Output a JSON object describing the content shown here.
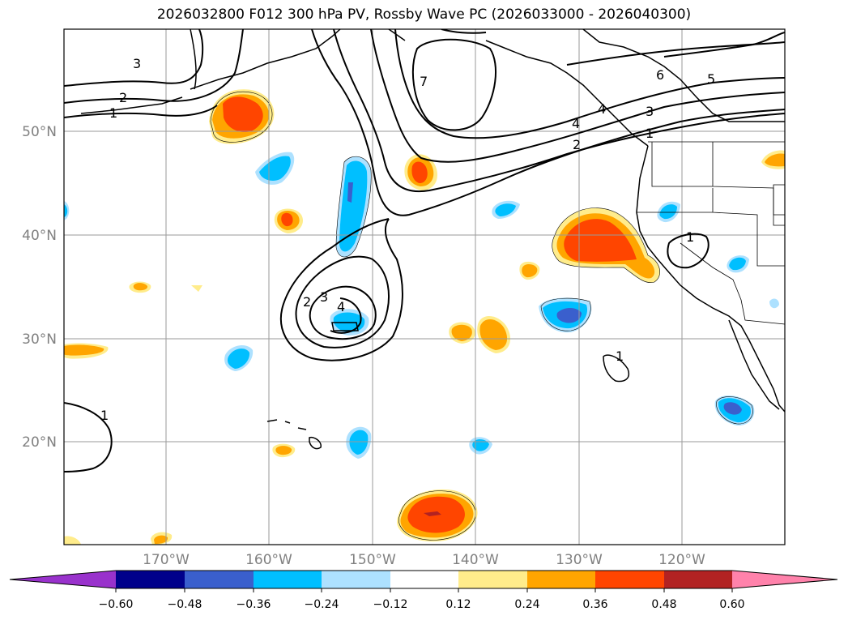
{
  "title": "2026032800 F012 300 hPa PV, Rossby Wave PC (2026033000 - 2026040300)",
  "map": {
    "lat_labels": [
      "50°N",
      "40°N",
      "30°N",
      "20°N"
    ],
    "lon_labels": [
      "170°W",
      "160°W",
      "150°W",
      "140°W",
      "130°W",
      "120°W"
    ],
    "contour_labels": [
      "3",
      "2",
      "1",
      "7",
      "6",
      "5",
      "4",
      "3",
      "2",
      "1",
      "1",
      "4",
      "2",
      "3",
      "4",
      "1",
      "1"
    ]
  },
  "colorbar": {
    "ticks": [
      "−0.60",
      "−0.48",
      "−0.36",
      "−0.24",
      "−0.12",
      "0.12",
      "0.24",
      "0.36",
      "0.48",
      "0.60"
    ],
    "colors": [
      "#9932CC",
      "#00008B",
      "#3A5FCD",
      "#00BFFF",
      "#ADE1FF",
      "#FFFFFF",
      "#FFEC8B",
      "#FFA500",
      "#FF4500",
      "#B22222",
      "#FF82AB"
    ]
  },
  "shading_colors": {
    "pos_weak": "#FFEC8B",
    "pos_mid": "#FFA500",
    "pos_strong": "#FF4500",
    "pos_extreme": "#B22222",
    "neg_weak": "#ADE1FF",
    "neg_mid": "#00BFFF",
    "neg_strong": "#3A5FCD",
    "neg_extreme": "#00008B"
  }
}
